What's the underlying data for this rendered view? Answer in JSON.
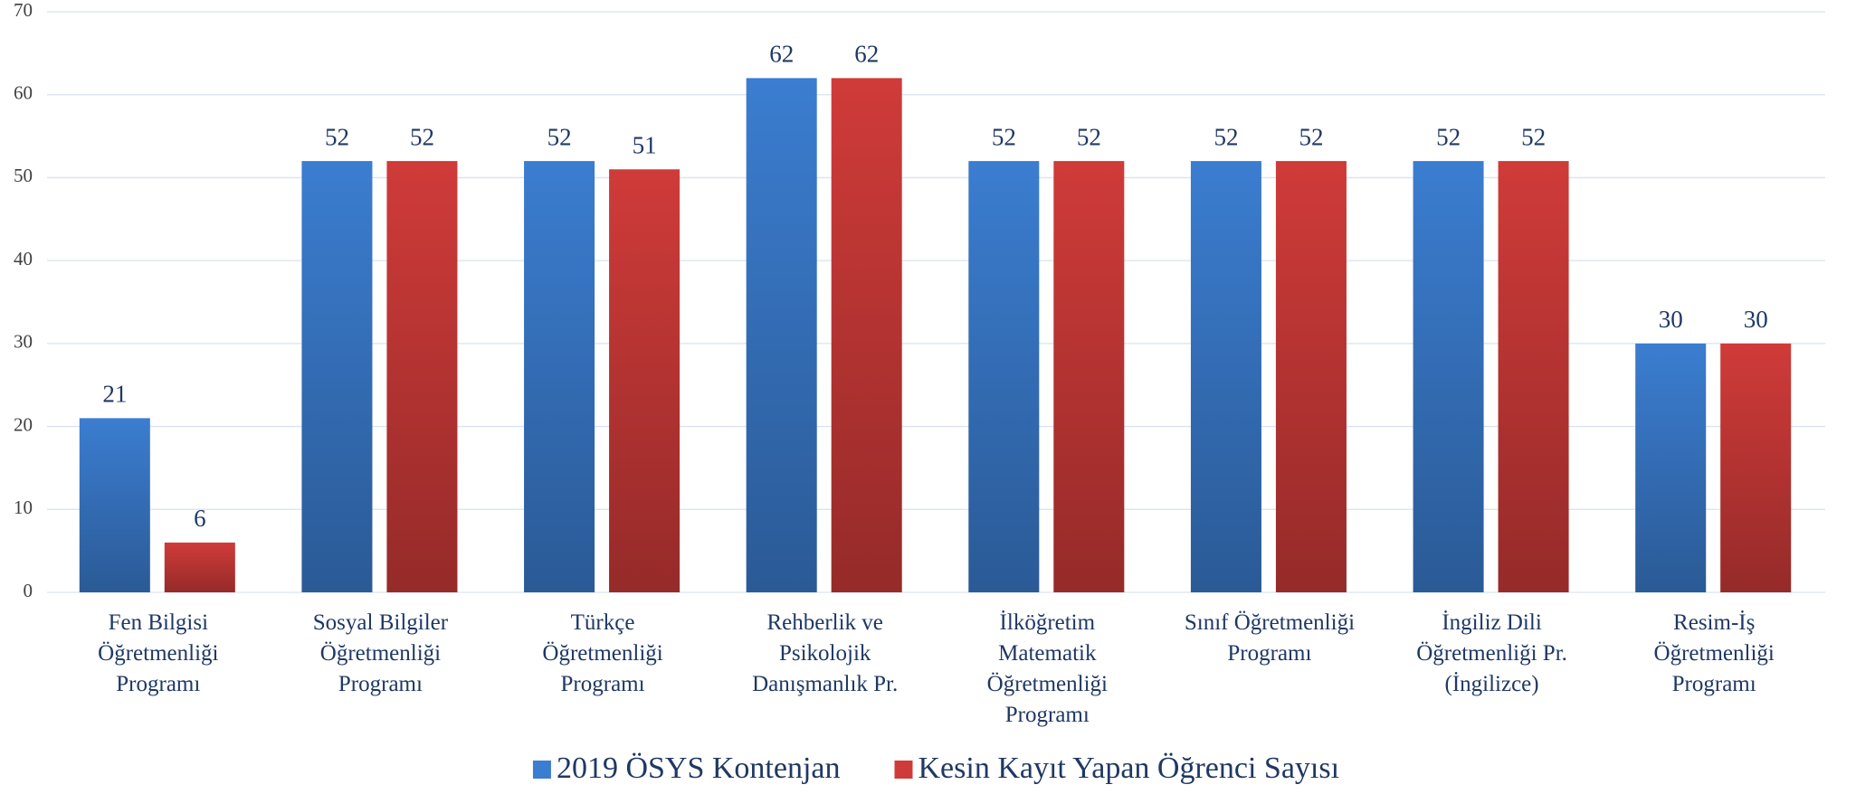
{
  "chart_data": {
    "type": "bar",
    "categories": [
      "Fen Bilgisi\nÖğretmenliği\nProgramı",
      "Sosyal Bilgiler\nÖğretmenliği\nProgramı",
      "Türkçe\nÖğretmenliği\nProgramı",
      "Rehberlik ve\nPsikolojik\nDanışmanlık Pr.",
      "İlköğretim\nMatematik\nÖğretmenliği\nProgramı",
      "Sınıf Öğretmenliği\nProgramı",
      "İngiliz Dili\nÖğretmenliği Pr.\n(İngilizce)",
      "Resim-İş\nÖğretmenliği\nProgramı"
    ],
    "series": [
      {
        "name": "2019 ÖSYS Kontenjan",
        "color": "#3b7dd0",
        "values": [
          21,
          52,
          52,
          62,
          52,
          52,
          52,
          30
        ]
      },
      {
        "name": "Kesin Kayıt Yapan Öğrenci Sayısı",
        "color": "#cf3b39",
        "values": [
          6,
          52,
          51,
          62,
          52,
          52,
          52,
          30
        ]
      }
    ],
    "ylim": [
      0,
      70
    ],
    "yticks": [
      0,
      10,
      20,
      30,
      40,
      50,
      60,
      70
    ],
    "grid": true,
    "legend": "bottom"
  }
}
